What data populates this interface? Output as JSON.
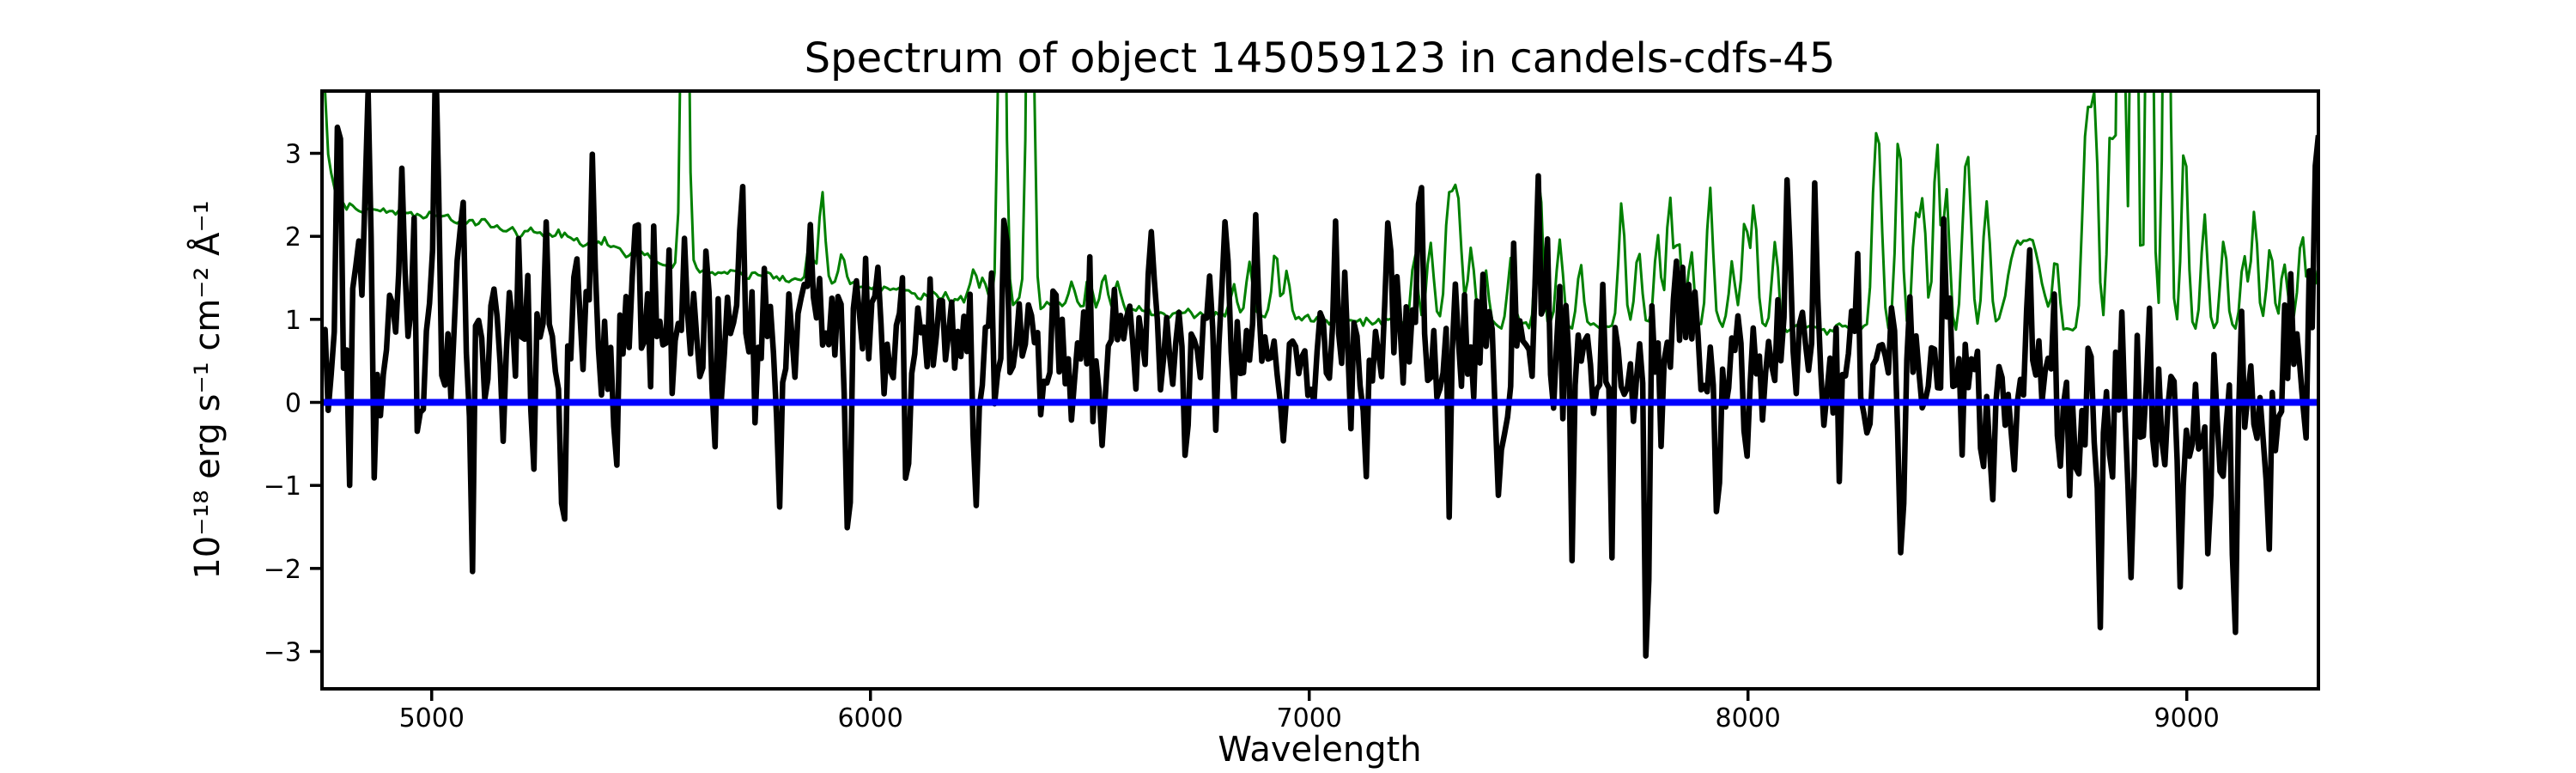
{
  "title": "Spectrum of object 145059123 in candels-cdfs-45",
  "xlabel": "Wavelength",
  "ylabel": "10⁻¹⁸ erg s⁻¹ cm⁻² Å⁻¹",
  "colors": {
    "background": "#ffffff",
    "axes": "#000000",
    "flux_line": "#000000",
    "noise_line": "#008000",
    "zero_line": "#0000ff"
  },
  "chart_data": {
    "type": "line",
    "title": "Spectrum of object 145059123 in candels-cdfs-45",
    "xlabel": "Wavelength",
    "ylabel": "10⁻¹⁸ erg s⁻¹ cm⁻² Å⁻¹",
    "xlim": [
      4750,
      9300
    ],
    "ylim": [
      -3.45,
      3.75
    ],
    "grid": false,
    "legend": "none",
    "sample_step_angstrom": 7,
    "x_ticks": {
      "values": [
        5000,
        6000,
        7000,
        8000,
        9000
      ],
      "labels": [
        "5000",
        "6000",
        "7000",
        "8000",
        "9000"
      ]
    },
    "y_ticks": {
      "values": [
        -3,
        -2,
        -1,
        0,
        1,
        2,
        3
      ],
      "labels": [
        "−3",
        "−2",
        "−1",
        "0",
        "1",
        "2",
        "3"
      ]
    },
    "series": [
      {
        "name": "noise-spectrum",
        "kind": "noise",
        "color": "#008000",
        "line_width": 3,
        "seed": 101,
        "jitter": 0.025,
        "continuum": [
          [
            4750,
            4.5
          ],
          [
            4765,
            2.9
          ],
          [
            4785,
            2.4
          ],
          [
            4850,
            2.32
          ],
          [
            5000,
            2.25
          ],
          [
            5150,
            2.12
          ],
          [
            5300,
            2.0
          ],
          [
            5450,
            1.82
          ],
          [
            5600,
            1.6
          ],
          [
            5800,
            1.5
          ],
          [
            6000,
            1.38
          ],
          [
            6200,
            1.25
          ],
          [
            6400,
            1.18
          ],
          [
            6600,
            1.1
          ],
          [
            6800,
            1.05
          ],
          [
            7000,
            1.0
          ],
          [
            7200,
            0.97
          ],
          [
            7400,
            0.95
          ],
          [
            7600,
            0.93
          ],
          [
            7800,
            0.92
          ],
          [
            8000,
            0.92
          ],
          [
            8200,
            0.9
          ],
          [
            8400,
            0.88
          ],
          [
            8600,
            0.87
          ],
          [
            8800,
            0.86
          ],
          [
            9000,
            0.87
          ],
          [
            9150,
            0.9
          ],
          [
            9250,
            1.0
          ],
          [
            9300,
            1.1
          ]
        ],
        "sky_lines": [
          [
            5199,
            1.95
          ],
          [
            5577,
            8
          ],
          [
            5862,
            1.9
          ],
          [
            5890,
            2.5
          ],
          [
            5934,
            1.8
          ],
          [
            6235,
            1.55
          ],
          [
            6257,
            1.5
          ],
          [
            6300,
            8
          ],
          [
            6364,
            8
          ],
          [
            6460,
            1.45
          ],
          [
            6498,
            1.5
          ],
          [
            6533,
            1.55
          ],
          [
            6563,
            1.45
          ],
          [
            6828,
            1.45
          ],
          [
            6864,
            1.75
          ],
          [
            6923,
            1.85
          ],
          [
            6949,
            1.6
          ],
          [
            7240,
            1.8
          ],
          [
            7276,
            1.95
          ],
          [
            7316,
            2.25
          ],
          [
            7329,
            2.1
          ],
          [
            7341,
            2.15
          ],
          [
            7369,
            1.85
          ],
          [
            7402,
            1.6
          ],
          [
            7460,
            1.7
          ],
          [
            7524,
            2.8
          ],
          [
            7571,
            1.95
          ],
          [
            7618,
            1.7
          ],
          [
            7712,
            2.45
          ],
          [
            7750,
            1.85
          ],
          [
            7794,
            2.05
          ],
          [
            7821,
            2.45
          ],
          [
            7841,
            1.95
          ],
          [
            7870,
            1.8
          ],
          [
            7913,
            2.65
          ],
          [
            7964,
            1.7
          ],
          [
            7993,
            2.25
          ],
          [
            8014,
            2.4
          ],
          [
            8062,
            1.95
          ],
          [
            8288,
            2.45
          ],
          [
            8299,
            2.65
          ],
          [
            8344,
            3.35
          ],
          [
            8382,
            2.25
          ],
          [
            8399,
            2.35
          ],
          [
            8430,
            3.15
          ],
          [
            8452,
            2.55
          ],
          [
            8493,
            2.25
          ],
          [
            8504,
            2.35
          ],
          [
            8540,
            1.85
          ],
          [
            8548,
            1.75
          ],
          [
            8610,
            1.75,
            20
          ],
          [
            8650,
            1.8,
            20
          ],
          [
            8702,
            1.7
          ],
          [
            8767,
            2.55
          ],
          [
            8778,
            2.65
          ],
          [
            8791,
            3.3
          ],
          [
            8827,
            3.4
          ],
          [
            8850,
            8
          ],
          [
            8880,
            8
          ],
          [
            8915,
            8
          ],
          [
            8954,
            8
          ],
          [
            8995,
            3.2
          ],
          [
            9040,
            2.3
          ],
          [
            9085,
            1.95
          ],
          [
            9130,
            1.8
          ],
          [
            9154,
            2.3
          ],
          [
            9190,
            1.9
          ],
          [
            9222,
            1.7
          ],
          [
            9262,
            2.0
          ],
          [
            9284,
            1.7
          ],
          [
            9307,
            1.95
          ]
        ]
      },
      {
        "name": "flux-spectrum",
        "kind": "flux",
        "color": "#000000",
        "line_width": 6.5,
        "seed": 42,
        "feature_width": 5,
        "continuum": [
          [
            4750,
            1.05
          ],
          [
            5000,
            0.95
          ],
          [
            5300,
            0.9
          ],
          [
            5600,
            0.85
          ],
          [
            6000,
            0.75
          ],
          [
            6400,
            0.7
          ],
          [
            6800,
            0.72
          ],
          [
            7200,
            0.72
          ],
          [
            7600,
            0.6
          ],
          [
            8000,
            0.5
          ],
          [
            8300,
            0.35
          ],
          [
            8600,
            0.1
          ],
          [
            8800,
            -0.05
          ],
          [
            9000,
            -0.1
          ],
          [
            9150,
            -0.15
          ],
          [
            9300,
            0.2
          ]
        ],
        "sigma": [
          [
            4750,
            0.62
          ],
          [
            5200,
            0.6
          ],
          [
            5600,
            0.5
          ],
          [
            6000,
            0.45
          ],
          [
            6500,
            0.4
          ],
          [
            7000,
            0.42
          ],
          [
            7400,
            0.45
          ],
          [
            7800,
            0.5
          ],
          [
            8200,
            0.5
          ],
          [
            8600,
            0.55
          ],
          [
            9000,
            0.6
          ],
          [
            9300,
            0.65
          ]
        ],
        "features": [
          [
            4790,
            2.5
          ],
          [
            4855,
            2.1
          ],
          [
            4875,
            -2.2
          ],
          [
            4930,
            2.2
          ],
          [
            4975,
            -1.6
          ],
          [
            5010,
            2.1
          ],
          [
            5065,
            1.9
          ],
          [
            5090,
            -2.0
          ],
          [
            5160,
            -1.4
          ],
          [
            5230,
            -2.8
          ],
          [
            5260,
            1.6
          ],
          [
            5300,
            -2.3
          ],
          [
            5365,
            1.4
          ],
          [
            5420,
            -2.2
          ],
          [
            5465,
            1.6
          ],
          [
            5577,
            1.7
          ],
          [
            5640,
            -1.5
          ],
          [
            5705,
            1.2
          ],
          [
            5790,
            -1.6
          ],
          [
            5860,
            1.3
          ],
          [
            5950,
            -2.2
          ],
          [
            6020,
            1.2
          ],
          [
            6085,
            -1.7
          ],
          [
            6240,
            -2.0
          ],
          [
            6310,
            1.4
          ],
          [
            6420,
            1.3
          ],
          [
            6530,
            -1.2
          ],
          [
            6640,
            1.2
          ],
          [
            6720,
            -1.1
          ],
          [
            6810,
            1.3
          ],
          [
            6880,
            1.5
          ],
          [
            6940,
            -1.3
          ],
          [
            7060,
            1.2
          ],
          [
            7130,
            -1.2
          ],
          [
            7180,
            1.6
          ],
          [
            7255,
            2.1
          ],
          [
            7320,
            -1.4
          ],
          [
            7430,
            -2.6
          ],
          [
            7520,
            1.3
          ],
          [
            7600,
            -2.5
          ],
          [
            7690,
            -1.7
          ],
          [
            7770,
            -3.2
          ],
          [
            7850,
            1.2
          ],
          [
            7930,
            -1.5
          ],
          [
            8000,
            -1.7
          ],
          [
            8090,
            2.9
          ],
          [
            8155,
            2.0
          ],
          [
            8210,
            -1.4
          ],
          [
            8250,
            1.4
          ],
          [
            8350,
            -1.6
          ],
          [
            8450,
            1.5
          ],
          [
            8560,
            -1.6
          ],
          [
            8640,
            1.8
          ],
          [
            8730,
            -1.4
          ],
          [
            8800,
            -1.9
          ],
          [
            8870,
            -2.2
          ],
          [
            8915,
            1.7
          ],
          [
            8990,
            -1.5
          ],
          [
            9050,
            -2.0
          ],
          [
            9105,
            -1.7
          ],
          [
            9180,
            -1.3
          ],
          [
            9250,
            1.5
          ],
          [
            9298,
            2.6
          ]
        ]
      },
      {
        "name": "zero-line",
        "kind": "hline",
        "color": "#0000ff",
        "line_width": 8,
        "y": 0
      }
    ]
  }
}
